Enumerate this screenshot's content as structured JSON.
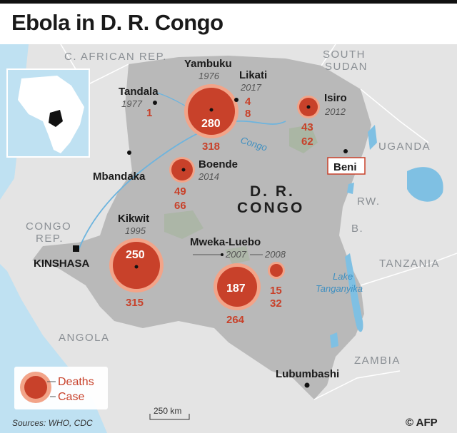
{
  "title": "Ebola in D. R. Congo",
  "countries": {
    "car": "C. AFRICAN REP.",
    "south_sudan_1": "SOUTH",
    "south_sudan_2": "SUDAN",
    "uganda": "UGANDA",
    "rwanda": "RW.",
    "burundi": "B.",
    "tanzania": "TANZANIA",
    "congo_rep_1": "CONGO",
    "congo_rep_2": "REP.",
    "angola": "ANGOLA",
    "zambia": "ZAMBIA",
    "drc_1": "D. R.",
    "drc_2": "CONGO"
  },
  "water": {
    "congo_river": "Congo",
    "lake_1": "Lake",
    "lake_2": "Tanganyika"
  },
  "cities": {
    "kinshasa": "KINSHASA",
    "mbandaka": "Mbandaka",
    "lubumbashi": "Lubumbashi",
    "beni": "Beni"
  },
  "outbreaks": [
    {
      "place": "Tandala",
      "year": "1977",
      "deaths": "1",
      "cases": ""
    },
    {
      "place": "Yambuku",
      "year": "1976",
      "deaths": "280",
      "cases": "318"
    },
    {
      "place": "Likati",
      "year": "2017",
      "deaths": "4",
      "cases": "8"
    },
    {
      "place": "Isiro",
      "year": "2012",
      "deaths": "43",
      "cases": "62"
    },
    {
      "place": "Boende",
      "year": "2014",
      "deaths": "49",
      "cases": "66"
    },
    {
      "place": "Kikwit",
      "year": "1995",
      "deaths": "250",
      "cases": "315"
    },
    {
      "place": "Mweka-Luebo",
      "year": "2007",
      "deaths": "187",
      "cases": "264"
    },
    {
      "place": "",
      "year": "2008",
      "deaths": "15",
      "cases": "32"
    }
  ],
  "legend": {
    "deaths": "Deaths",
    "cases": "Case"
  },
  "scale_label": "250 km",
  "sources": "Sources: WHO, CDC",
  "credit": "© AFP",
  "colors": {
    "death": "#c8412a",
    "case": "#f2a489",
    "land_drc": "#b9b9b9",
    "land_other": "#e4e4e4",
    "water": "#bfe1f2"
  }
}
